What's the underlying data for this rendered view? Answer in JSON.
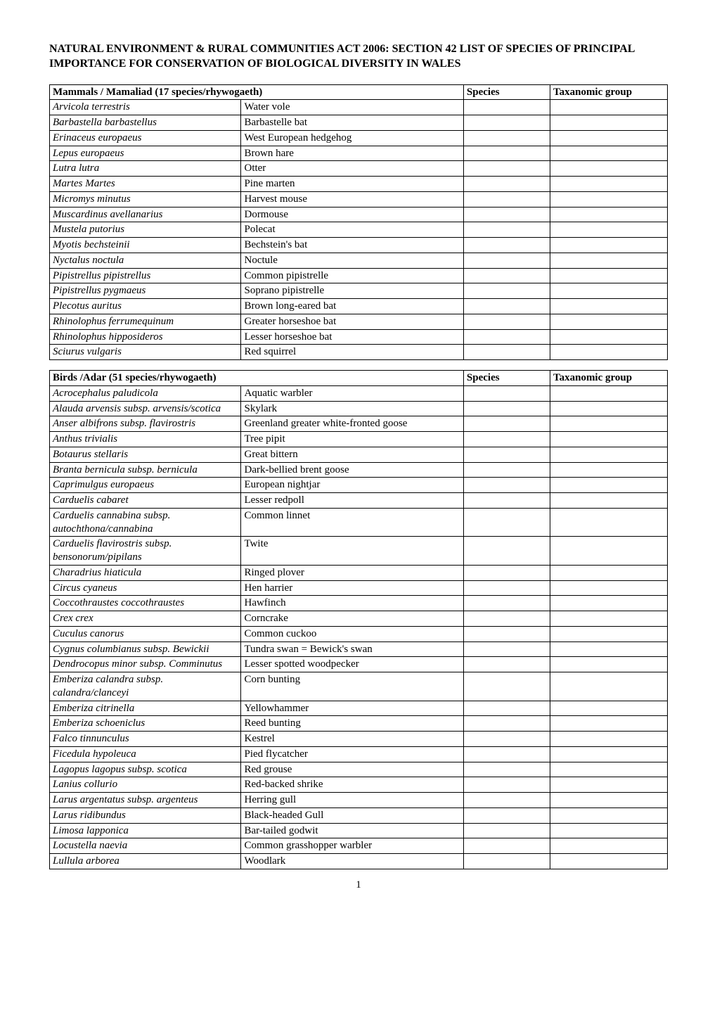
{
  "title": "NATURAL ENVIRONMENT & RURAL COMMUNITIES ACT 2006: SECTION 42 LIST OF SPECIES OF PRINCIPAL IMPORTANCE FOR CONSERVATION OF BIOLOGICAL DIVERSITY IN WALES",
  "col_species": "Species",
  "col_group": "Taxanomic group",
  "mammals": {
    "header": "Mammals / Mamaliad (17 species/rhywogaeth)",
    "rows": [
      {
        "latin": "Arvicola terrestris",
        "common": "Water vole"
      },
      {
        "latin": "Barbastella barbastellus",
        "common": "Barbastelle bat"
      },
      {
        "latin": "Erinaceus europaeus",
        "common": "West European hedgehog"
      },
      {
        "latin": "Lepus europaeus",
        "common": "Brown hare"
      },
      {
        "latin": "Lutra lutra",
        "common": "Otter"
      },
      {
        "latin": "Martes Martes",
        "common": "Pine marten"
      },
      {
        "latin": "Micromys minutus",
        "common": "Harvest mouse"
      },
      {
        "latin": "Muscardinus avellanarius",
        "common": "Dormouse"
      },
      {
        "latin": "Mustela putorius",
        "common": "Polecat"
      },
      {
        "latin": "Myotis bechsteinii",
        "common": "Bechstein's bat"
      },
      {
        "latin": "Nyctalus noctula",
        "common": "Noctule"
      },
      {
        "latin": "Pipistrellus pipistrellus",
        "common": "Common pipistrelle"
      },
      {
        "latin": "Pipistrellus pygmaeus",
        "common": "Soprano pipistrelle"
      },
      {
        "latin": "Plecotus auritus",
        "common": "Brown long-eared bat"
      },
      {
        "latin": "Rhinolophus ferrumequinum",
        "common": "Greater horseshoe bat"
      },
      {
        "latin": "Rhinolophus hipposideros",
        "common": "Lesser horseshoe bat"
      },
      {
        "latin": "Sciurus vulgaris",
        "common": "Red squirrel"
      }
    ]
  },
  "birds": {
    "header": "Birds /Adar (51 species/rhywogaeth)",
    "rows": [
      {
        "latin": "Acrocephalus paludicola",
        "common": "Aquatic warbler"
      },
      {
        "latin": "Alauda arvensis subsp. arvensis/scotica",
        "common": "Skylark"
      },
      {
        "latin": "Anser albifrons subsp. flavirostris",
        "common": "Greenland greater white-fronted goose"
      },
      {
        "latin": "Anthus trivialis",
        "common": "Tree pipit"
      },
      {
        "latin": "Botaurus stellaris",
        "common": "Great bittern"
      },
      {
        "latin": "Branta bernicula subsp. bernicula",
        "common": "Dark-bellied brent goose"
      },
      {
        "latin": "Caprimulgus europaeus",
        "common": "European nightjar"
      },
      {
        "latin": "Carduelis cabaret",
        "common": "Lesser redpoll"
      },
      {
        "latin": "Carduelis cannabina subsp. autochthona/cannabina",
        "common": "Common linnet"
      },
      {
        "latin": "Carduelis flavirostris subsp. bensonorum/pipilans",
        "common": "Twite"
      },
      {
        "latin": "Charadrius hiaticula",
        "common": "Ringed plover"
      },
      {
        "latin": "Circus cyaneus",
        "common": "Hen harrier"
      },
      {
        "latin": "Coccothraustes coccothraustes",
        "common": "Hawfinch"
      },
      {
        "latin": "Crex crex",
        "common": "Corncrake"
      },
      {
        "latin": "Cuculus canorus",
        "common": "Common cuckoo"
      },
      {
        "latin": "Cygnus columbianus subsp. Bewickii",
        "common": "Tundra swan = Bewick's swan"
      },
      {
        "latin": "Dendrocopus minor subsp. Comminutus",
        "common": "Lesser spotted woodpecker"
      },
      {
        "latin": "Emberiza calandra subsp. calandra/clanceyi",
        "common": "Corn bunting"
      },
      {
        "latin": "Emberiza citrinella",
        "common": "Yellowhammer"
      },
      {
        "latin": "Emberiza schoeniclus",
        "common": "Reed bunting"
      },
      {
        "latin": "Falco tinnunculus",
        "common": "Kestrel"
      },
      {
        "latin": "Ficedula hypoleuca",
        "common": "Pied flycatcher"
      },
      {
        "latin": "Lagopus lagopus subsp. scotica",
        "common": "Red grouse"
      },
      {
        "latin": "Lanius collurio",
        "common": "Red-backed shrike"
      },
      {
        "latin": "Larus argentatus subsp. argenteus",
        "common": "Herring gull"
      },
      {
        "latin": "Larus ridibundus",
        "common": "Black-headed Gull"
      },
      {
        "latin": "Limosa lapponica",
        "common": "Bar-tailed godwit"
      },
      {
        "latin": "Locustella naevia",
        "common": "Common grasshopper warbler"
      },
      {
        "latin": "Lullula arborea",
        "common": "Woodlark"
      }
    ]
  },
  "page_number": "1"
}
